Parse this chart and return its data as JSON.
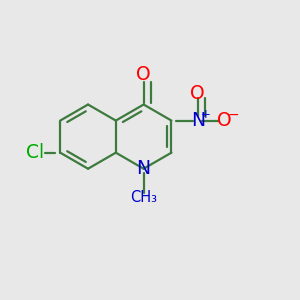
{
  "background_color": "#e8e8e8",
  "bond_color": "#3d7a3d",
  "bond_width": 1.6,
  "dbo": 0.016,
  "figsize": [
    3.0,
    3.0
  ],
  "dpi": 100,
  "atom_colors": {
    "C": "#3d7a3d",
    "N": "#0000cc",
    "O": "#ff0000",
    "Cl": "#00aa00"
  }
}
